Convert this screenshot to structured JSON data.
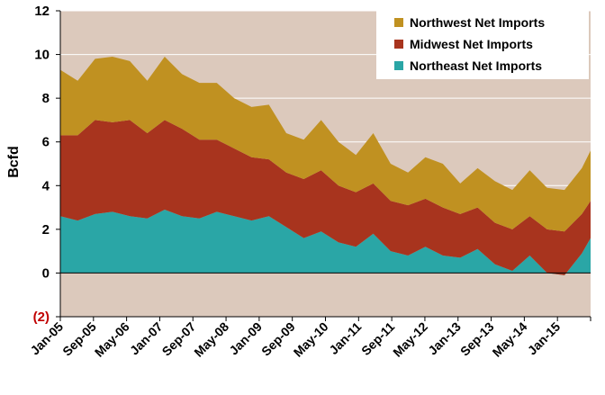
{
  "chart_data": {
    "type": "area",
    "stacked": true,
    "title": "",
    "xlabel": "",
    "ylabel": "Bcfd",
    "ylim": [
      -2,
      12
    ],
    "y_ticks": [
      {
        "value": 12,
        "label": "12"
      },
      {
        "value": 10,
        "label": "10"
      },
      {
        "value": 8,
        "label": "8"
      },
      {
        "value": 6,
        "label": "6"
      },
      {
        "value": 4,
        "label": "4"
      },
      {
        "value": 2,
        "label": "2"
      },
      {
        "value": 0,
        "label": "0"
      },
      {
        "value": -2,
        "label": "(2)"
      }
    ],
    "x_ticks": [
      "Jan-05",
      "Sep-05",
      "May-06",
      "Jan-07",
      "Sep-07",
      "May-08",
      "Jan-09",
      "Sep-09",
      "May-10",
      "Jan-11",
      "Sep-11",
      "May-12",
      "Jan-13",
      "Sep-13",
      "May-14",
      "Jan-15"
    ],
    "grid": "horizontal",
    "legend_position": "top-right",
    "colors": {
      "plot_background": "#dcc9bc",
      "northwest": "#c09121",
      "midwest": "#a8341e",
      "northeast": "#2aa6a6",
      "negative_tick": "#c00000"
    },
    "legend": [
      "Northwest Net Imports",
      "Midwest Net Imports",
      "Northeast Net Imports"
    ],
    "x": [
      "Jan-05",
      "May-05",
      "Sep-05",
      "Jan-06",
      "May-06",
      "Sep-06",
      "Jan-07",
      "May-07",
      "Sep-07",
      "Jan-08",
      "May-08",
      "Sep-08",
      "Jan-09",
      "May-09",
      "Sep-09",
      "Jan-10",
      "May-10",
      "Sep-10",
      "Jan-11",
      "May-11",
      "Sep-11",
      "Jan-12",
      "May-12",
      "Sep-12",
      "Jan-13",
      "May-13",
      "Sep-13",
      "Jan-14",
      "May-14",
      "Sep-14",
      "Jan-15",
      "Mar-15"
    ],
    "series": [
      {
        "name": "Northeast Net Imports",
        "color": "#2aa6a6",
        "values": [
          2.6,
          2.4,
          2.7,
          2.8,
          2.6,
          2.5,
          2.9,
          2.6,
          2.5,
          2.8,
          2.6,
          2.4,
          2.6,
          2.1,
          1.6,
          1.9,
          1.4,
          1.2,
          1.8,
          1.0,
          0.8,
          1.2,
          0.8,
          0.7,
          1.1,
          0.4,
          0.1,
          0.8,
          0.0,
          -0.1,
          0.9,
          1.6
        ]
      },
      {
        "name": "Midwest Net Imports",
        "color": "#a8341e",
        "values": [
          3.7,
          3.9,
          4.3,
          4.1,
          4.4,
          3.9,
          4.1,
          4.0,
          3.6,
          3.3,
          3.1,
          2.9,
          2.6,
          2.5,
          2.7,
          2.8,
          2.6,
          2.5,
          2.3,
          2.3,
          2.3,
          2.2,
          2.2,
          2.0,
          1.9,
          1.9,
          1.9,
          1.8,
          2.0,
          2.0,
          1.8,
          1.7
        ]
      },
      {
        "name": "Northwest Net Imports",
        "color": "#c09121",
        "values": [
          3.0,
          2.5,
          2.8,
          3.0,
          2.7,
          2.4,
          2.9,
          2.5,
          2.6,
          2.6,
          2.3,
          2.3,
          2.5,
          1.8,
          1.8,
          2.3,
          2.0,
          1.7,
          2.3,
          1.7,
          1.5,
          1.9,
          2.0,
          1.4,
          1.8,
          1.9,
          1.8,
          2.1,
          1.9,
          1.9,
          2.1,
          2.3
        ]
      }
    ]
  }
}
